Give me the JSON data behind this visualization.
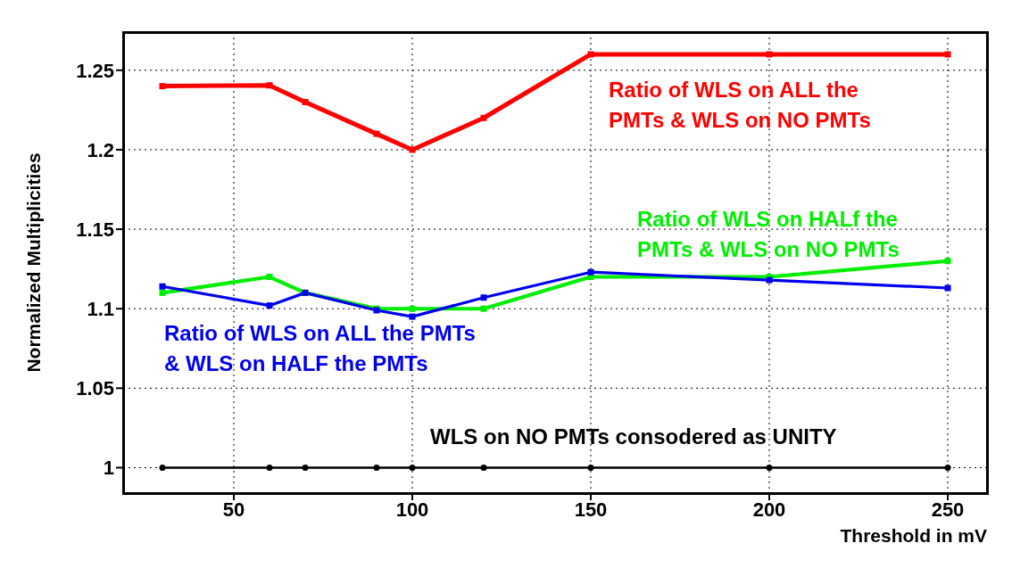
{
  "chart_data": {
    "type": "line",
    "xlabel": "Threshold in mV",
    "ylabel": "Normalized Multiplicities",
    "x": [
      30,
      60,
      70,
      90,
      100,
      120,
      150,
      200,
      250
    ],
    "series": [
      {
        "name": "Ratio of WLS on ALL the PMTs & WLS on NO PMTs",
        "color": "#ff0000",
        "marker": "square",
        "values": [
          1.24,
          1.2405,
          1.23,
          1.21,
          1.2,
          1.22,
          1.26,
          1.26,
          1.26
        ]
      },
      {
        "name": "Ratio of WLS on HALf the PMTs & WLS on NO PMTs",
        "color": "#00ee00",
        "marker": "square",
        "values": [
          1.11,
          1.12,
          1.11,
          1.1,
          1.1,
          1.1,
          1.12,
          1.12,
          1.13
        ]
      },
      {
        "name": "Ratio of WLS on ALL the PMTs & WLS on HALF the PMTs",
        "color": "#0000ee",
        "marker": "square",
        "values": [
          1.114,
          1.102,
          1.11,
          1.099,
          1.095,
          1.107,
          1.123,
          1.118,
          1.113
        ]
      },
      {
        "name": "WLS on NO PMTs consodered as UNITY",
        "color": "#000000",
        "marker": "circle",
        "values": [
          1,
          1,
          1,
          1,
          1,
          1,
          1,
          1,
          1
        ]
      }
    ],
    "xlim": [
      19,
      261
    ],
    "ylim": [
      0.984,
      1.274
    ],
    "xticks": [
      50,
      100,
      150,
      200,
      250
    ],
    "yticks": [
      1,
      1.05,
      1.1,
      1.15,
      1.2,
      1.25
    ],
    "grid": true,
    "line_style": "solid"
  }
}
